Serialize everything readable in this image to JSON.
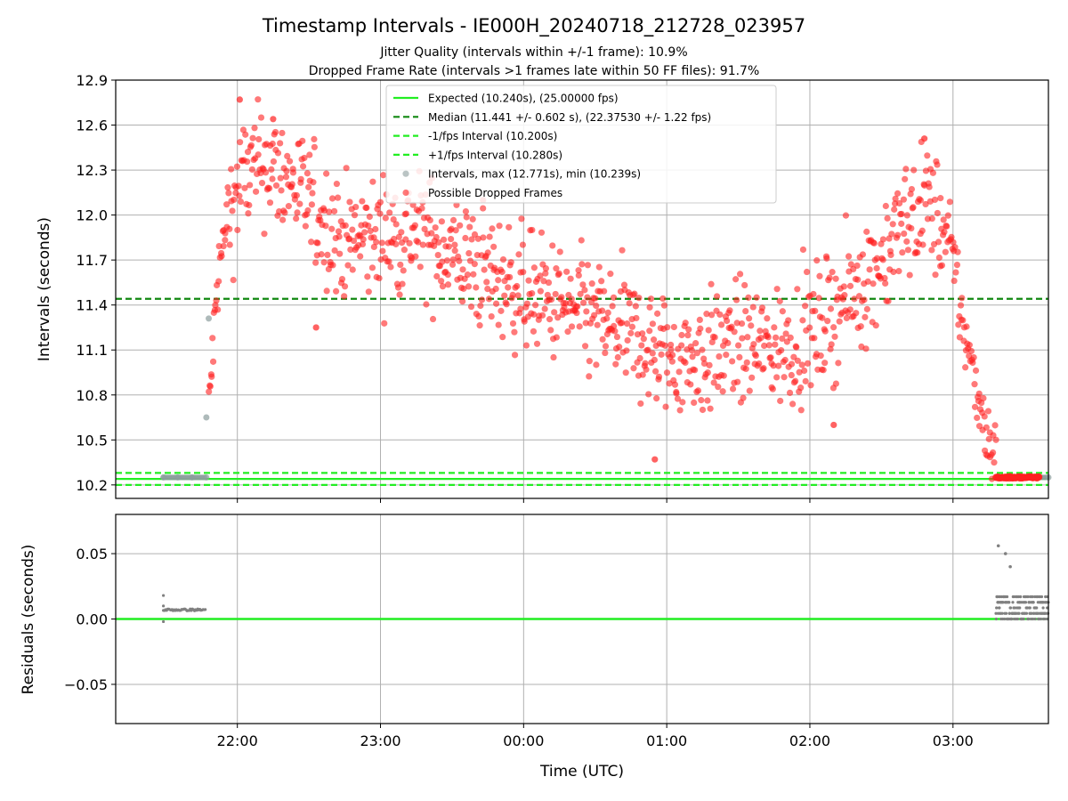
{
  "figure": {
    "title": "Timestamp Intervals - IE000H_20240718_212728_023957",
    "subtitle_1": "Jitter Quality (intervals within +/-1 frame): 10.9%",
    "subtitle_2": "Dropped Frame Rate (intervals >1 frames late within 50 FF files): 91.7%"
  },
  "chart_data": [
    {
      "type": "scatter",
      "xlabel": "",
      "ylabel": "Intervals (seconds)",
      "x_axis": "Time (UTC)",
      "xlim": [
        "21:09",
        "03:40"
      ],
      "ylim": [
        10.11,
        12.9
      ],
      "yticks": [
        "10.2",
        "10.5",
        "10.8",
        "11.1",
        "11.4",
        "11.7",
        "12.0",
        "12.3",
        "12.6",
        "12.9"
      ],
      "xticks": [
        "22:00",
        "23:00",
        "00:00",
        "01:00",
        "02:00",
        "03:00"
      ],
      "grid": true,
      "legend_position": "top-center",
      "lines": [
        {
          "name": "Expected (10.240s), (25.00000 fps)",
          "y": 10.24,
          "color": "#22ee22",
          "style": "solid"
        },
        {
          "name": "Median (11.441 +/- 0.602 s), (22.37530 +/- 1.22 fps)",
          "y": 11.441,
          "color": "#118811",
          "style": "dashed"
        },
        {
          "name": "-1/fps Interval (10.200s)",
          "y": 10.2,
          "color": "#22ee22",
          "style": "dashed"
        },
        {
          "name": "+1/fps Interval (10.280s)",
          "y": 10.28,
          "color": "#22ee22",
          "style": "dashed"
        }
      ],
      "series": [
        {
          "name": "Intervals, max (12.771s), min (10.239s)",
          "color": "#8c9c9c",
          "points": [
            {
              "x": "21:29",
              "y": 10.25
            },
            {
              "x": "21:35",
              "y": 10.25
            },
            {
              "x": "21:41",
              "y": 10.25
            },
            {
              "x": "21:47",
              "y": 10.25
            },
            {
              "x": "21:48",
              "y": 11.31
            },
            {
              "x": "21:47",
              "y": 10.65
            },
            {
              "x": "03:25",
              "y": 10.25
            },
            {
              "x": "03:40",
              "y": 10.25
            }
          ]
        },
        {
          "name": "Possible Dropped Frames",
          "color": "#ff2020",
          "envelope_center": [
            [
              "21:48",
              10.7
            ],
            [
              "21:52",
              11.6
            ],
            [
              "21:56",
              12.0
            ],
            [
              "22:02",
              12.25
            ],
            [
              "22:12",
              12.35
            ],
            [
              "22:24",
              12.2
            ],
            [
              "22:34",
              12.0
            ],
            [
              "22:45",
              11.82
            ],
            [
              "23:00",
              11.85
            ],
            [
              "23:15",
              11.9
            ],
            [
              "23:30",
              11.75
            ],
            [
              "23:45",
              11.6
            ],
            [
              "00:00",
              11.5
            ],
            [
              "00:15",
              11.4
            ],
            [
              "00:30",
              11.3
            ],
            [
              "00:45",
              11.2
            ],
            [
              "01:00",
              11.05
            ],
            [
              "01:15",
              11.05
            ],
            [
              "01:30",
              11.15
            ],
            [
              "01:45",
              11.1
            ],
            [
              "02:00",
              11.2
            ],
            [
              "02:10",
              11.35
            ],
            [
              "02:25",
              11.6
            ],
            [
              "02:40",
              11.95
            ],
            [
              "02:50",
              12.1
            ],
            [
              "02:58",
              11.8
            ],
            [
              "03:05",
              11.2
            ],
            [
              "03:12",
              10.7
            ],
            [
              "03:18",
              10.35
            ]
          ],
          "spread": 0.2,
          "extreme_points": [
            {
              "x": "22:01",
              "y": 12.77
            },
            {
              "x": "22:15",
              "y": 12.64
            },
            {
              "x": "23:43",
              "y": 12.1
            },
            {
              "x": "00:55",
              "y": 10.37
            },
            {
              "x": "02:48",
              "y": 12.51
            },
            {
              "x": "02:10",
              "y": 10.6
            },
            {
              "x": "22:33",
              "y": 11.25
            },
            {
              "x": "03:25",
              "y": 10.25
            },
            {
              "x": "03:30",
              "y": 10.25
            },
            {
              "x": "03:36",
              "y": 10.25
            }
          ]
        }
      ]
    },
    {
      "type": "scatter",
      "xlabel": "Time (UTC)",
      "ylabel": "Residuals (seconds)",
      "xlim": [
        "21:09",
        "03:40"
      ],
      "ylim": [
        -0.08,
        0.08
      ],
      "yticks": [
        "0.05",
        "0.00",
        "−0.05"
      ],
      "xticks": [
        "22:00",
        "23:00",
        "00:00",
        "01:00",
        "02:00",
        "03:00"
      ],
      "grid": true,
      "lines": [
        {
          "name": "",
          "y": 0.0,
          "color": "#22ee22",
          "style": "solid"
        }
      ],
      "series": [
        {
          "name": "",
          "color": "#808080",
          "points_cluster_1": {
            "x_range": [
              "21:29",
              "21:47"
            ],
            "y_typical": 0.007,
            "extras": [
              {
                "x": "21:29",
                "y": 0.018
              },
              {
                "x": "21:29",
                "y": -0.002
              },
              {
                "x": "21:29",
                "y": 0.01
              }
            ]
          },
          "points_cluster_2": {
            "x_range": [
              "03:18",
              "03:40"
            ],
            "y_range": [
              0.0,
              0.017
            ],
            "extras": [
              {
                "x": "03:19",
                "y": 0.056
              },
              {
                "x": "03:22",
                "y": 0.05
              },
              {
                "x": "03:24",
                "y": 0.04
              }
            ]
          }
        }
      ]
    }
  ],
  "colors": {
    "expected": "#22ee22",
    "median": "#118811",
    "dropped": "#ff2020",
    "intervals": "#8c9c9c",
    "residual_points": "#808080"
  }
}
